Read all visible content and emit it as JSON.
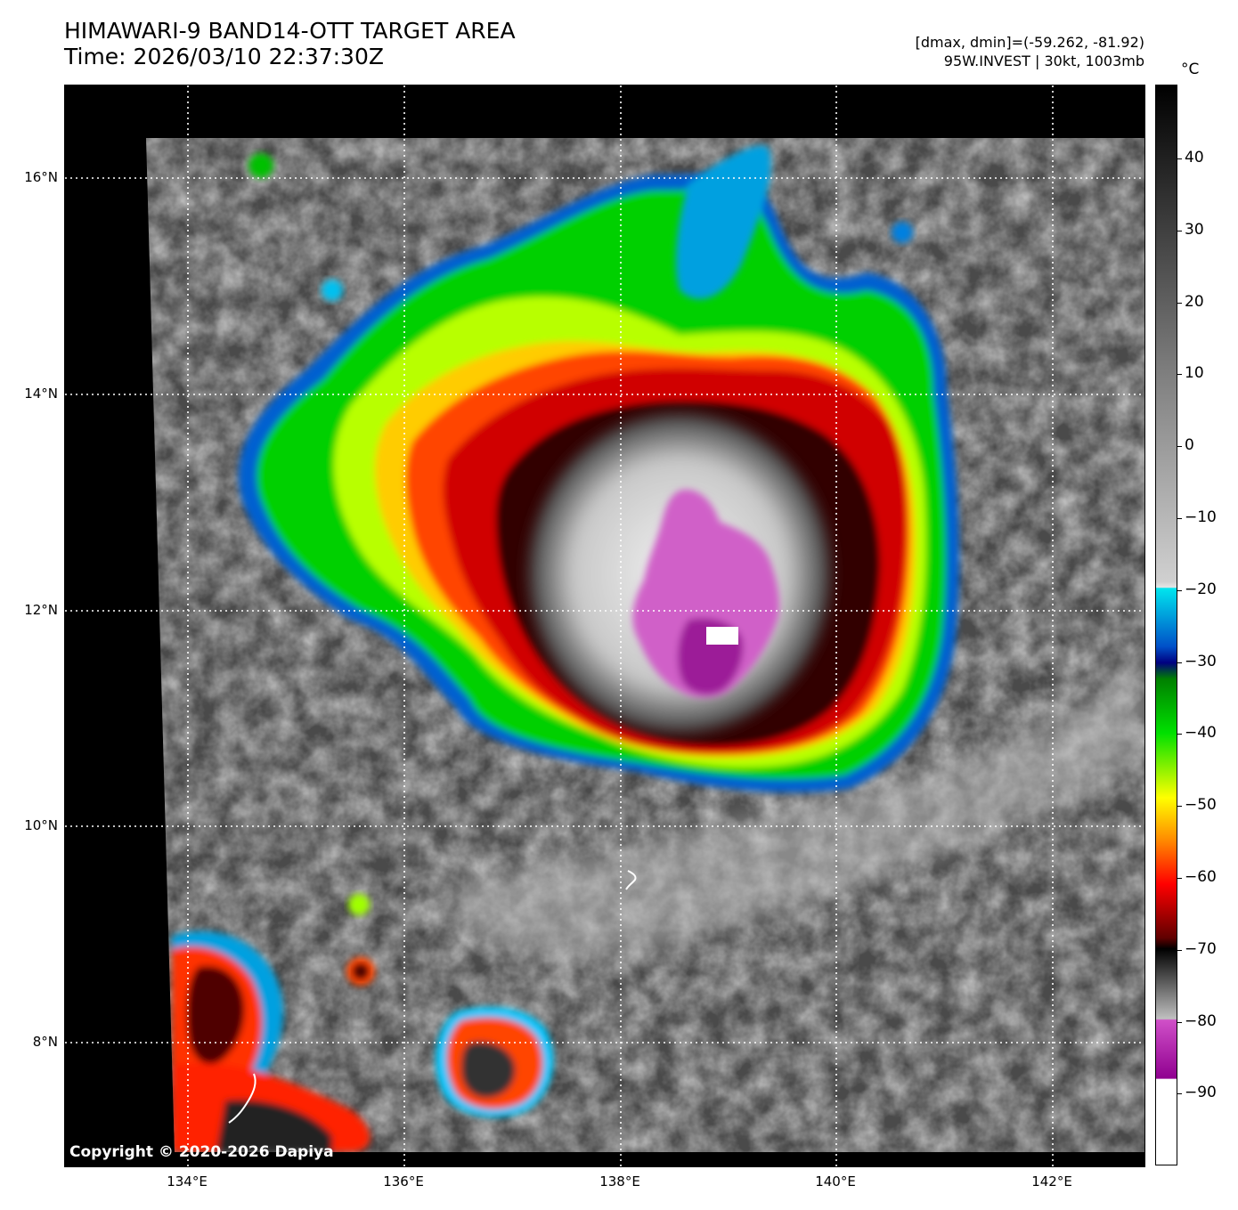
{
  "header": {
    "title_line1": "HIMAWARI-9 BAND14-OTT TARGET AREA",
    "title_line2": "Time: 2026/03/10 22:37:30Z",
    "info_line1": "[dmax, dmin]=(-59.262, -81.92)",
    "info_line2": "95W.INVEST | 30kt, 1003mb"
  },
  "map": {
    "lat_labels": [
      "16°N",
      "14°N",
      "12°N",
      "10°N",
      "8°N"
    ],
    "lon_labels": [
      "134°E",
      "136°E",
      "138°E",
      "140°E",
      "142°E"
    ],
    "copyright": "Copyright © 2020-2026 Dapiya",
    "grid_color": "#ffffff",
    "background_color": "#000000"
  },
  "colorbar": {
    "unit": "°C",
    "ticks": [
      "40",
      "30",
      "20",
      "10",
      "0",
      "−10",
      "−20",
      "−30",
      "−40",
      "−50",
      "−60",
      "−70",
      "−80",
      "−90"
    ],
    "colors": {
      "warm_black": "#000000",
      "gray_mid": "#808080",
      "light_gray": "#d0d0d0",
      "cyan": "#00e5ee",
      "blue": "#0050c8",
      "navy": "#000080",
      "green": "#00e000",
      "yellow": "#ffff00",
      "orange": "#ff8800",
      "red": "#ff0000",
      "dark_red": "#600000",
      "magenta": "#d050c8",
      "purple": "#900090",
      "white": "#ffffff"
    }
  }
}
